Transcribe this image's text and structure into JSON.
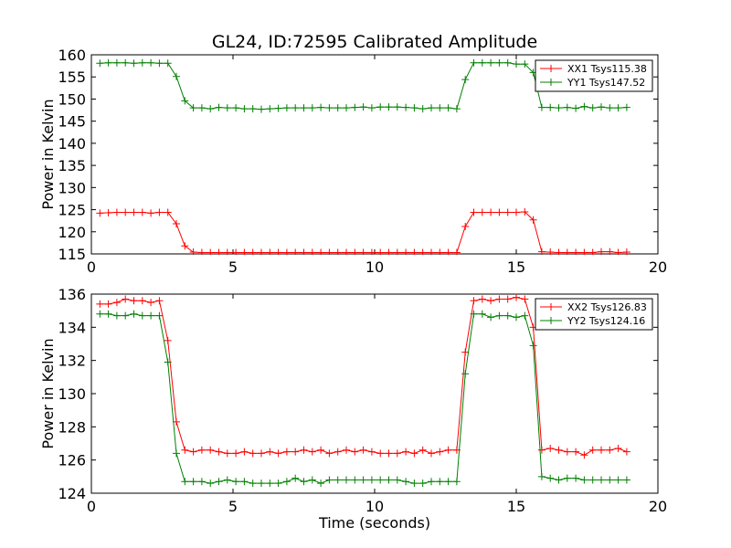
{
  "title": "GL24, ID:72595 Calibrated Amplitude",
  "colors": {
    "red": "#ff0000",
    "green": "#008000",
    "axis": "#000000"
  },
  "chart_data": [
    {
      "type": "line",
      "title": "GL24, ID:72595 Calibrated Amplitude",
      "xlabel": "",
      "ylabel": "Power in Kelvin",
      "xlim": [
        0,
        20
      ],
      "ylim": [
        115,
        160
      ],
      "xticks": [
        0,
        5,
        10,
        15,
        20
      ],
      "yticks": [
        115,
        120,
        125,
        130,
        135,
        140,
        145,
        150,
        155,
        160
      ],
      "grid": false,
      "legend": "top-right",
      "x": [
        0.3,
        0.6,
        0.9,
        1.2,
        1.5,
        1.8,
        2.1,
        2.4,
        2.7,
        3.0,
        3.3,
        3.6,
        3.9,
        4.2,
        4.5,
        4.8,
        5.1,
        5.4,
        5.7,
        6.0,
        6.3,
        6.6,
        6.9,
        7.2,
        7.5,
        7.8,
        8.1,
        8.4,
        8.7,
        9.0,
        9.3,
        9.6,
        9.9,
        10.2,
        10.5,
        10.8,
        11.1,
        11.4,
        11.7,
        12.0,
        12.3,
        12.6,
        12.9,
        13.2,
        13.5,
        13.8,
        14.1,
        14.4,
        14.7,
        15.0,
        15.3,
        15.6,
        15.9,
        16.2,
        16.5,
        16.8,
        17.1,
        17.4,
        17.7,
        18.0,
        18.3,
        18.6,
        18.9
      ],
      "series": [
        {
          "name": "XX1 Tsys115.38",
          "color": "#ff0000",
          "values": [
            124.2,
            124.3,
            124.4,
            124.4,
            124.4,
            124.4,
            124.2,
            124.4,
            124.4,
            121.8,
            116.8,
            115.4,
            115.3,
            115.3,
            115.3,
            115.3,
            115.3,
            115.3,
            115.3,
            115.3,
            115.3,
            115.3,
            115.3,
            115.3,
            115.3,
            115.3,
            115.3,
            115.3,
            115.3,
            115.3,
            115.3,
            115.3,
            115.3,
            115.3,
            115.3,
            115.3,
            115.3,
            115.3,
            115.3,
            115.3,
            115.3,
            115.3,
            115.3,
            121.2,
            124.4,
            124.4,
            124.4,
            124.4,
            124.4,
            124.4,
            124.5,
            122.7,
            115.5,
            115.4,
            115.3,
            115.3,
            115.3,
            115.3,
            115.3,
            115.5,
            115.5,
            115.3,
            115.4
          ]
        },
        {
          "name": "YY1 Tsys147.52",
          "color": "#008000",
          "values": [
            158.1,
            158.2,
            158.2,
            158.2,
            158.1,
            158.2,
            158.2,
            158.1,
            158.1,
            155.1,
            149.6,
            148.0,
            148.0,
            147.8,
            148.1,
            148.0,
            148.0,
            147.8,
            147.8,
            147.7,
            147.8,
            147.9,
            148.0,
            148.0,
            148.0,
            148.0,
            148.1,
            148.0,
            148.0,
            148.0,
            148.1,
            148.2,
            148.0,
            148.2,
            148.2,
            148.2,
            148.1,
            148.0,
            147.8,
            148.0,
            148.0,
            148.0,
            147.8,
            154.4,
            158.2,
            158.2,
            158.2,
            158.2,
            158.2,
            157.9,
            157.9,
            156.0,
            148.1,
            148.1,
            148.0,
            148.1,
            147.9,
            148.3,
            148.0,
            148.2,
            148.0,
            148.0,
            148.1
          ]
        }
      ]
    },
    {
      "type": "line",
      "title": "",
      "xlabel": "Time (seconds)",
      "ylabel": "Power in Kelvin",
      "xlim": [
        0,
        20
      ],
      "ylim": [
        124,
        136
      ],
      "xticks": [
        0,
        5,
        10,
        15,
        20
      ],
      "yticks": [
        124,
        126,
        128,
        130,
        132,
        134,
        136
      ],
      "grid": false,
      "legend": "top-right",
      "x": [
        0.3,
        0.6,
        0.9,
        1.2,
        1.5,
        1.8,
        2.1,
        2.4,
        2.7,
        3.0,
        3.3,
        3.6,
        3.9,
        4.2,
        4.5,
        4.8,
        5.1,
        5.4,
        5.7,
        6.0,
        6.3,
        6.6,
        6.9,
        7.2,
        7.5,
        7.8,
        8.1,
        8.4,
        8.7,
        9.0,
        9.3,
        9.6,
        9.9,
        10.2,
        10.5,
        10.8,
        11.1,
        11.4,
        11.7,
        12.0,
        12.3,
        12.6,
        12.9,
        13.2,
        13.5,
        13.8,
        14.1,
        14.4,
        14.7,
        15.0,
        15.3,
        15.6,
        15.9,
        16.2,
        16.5,
        16.8,
        17.1,
        17.4,
        17.7,
        18.0,
        18.3,
        18.6,
        18.9
      ],
      "series": [
        {
          "name": "XX2 Tsys126.83",
          "color": "#ff0000",
          "values": [
            135.4,
            135.4,
            135.5,
            135.7,
            135.6,
            135.6,
            135.5,
            135.6,
            133.2,
            128.3,
            126.6,
            126.5,
            126.6,
            126.6,
            126.5,
            126.4,
            126.4,
            126.5,
            126.4,
            126.4,
            126.5,
            126.4,
            126.5,
            126.5,
            126.6,
            126.5,
            126.6,
            126.4,
            126.5,
            126.6,
            126.5,
            126.6,
            126.5,
            126.4,
            126.4,
            126.4,
            126.5,
            126.4,
            126.6,
            126.4,
            126.5,
            126.6,
            126.6,
            132.5,
            135.6,
            135.7,
            135.6,
            135.7,
            135.7,
            135.8,
            135.7,
            134.0,
            126.6,
            126.7,
            126.6,
            126.5,
            126.5,
            126.3,
            126.6,
            126.6,
            126.6,
            126.7,
            126.5
          ]
        },
        {
          "name": "YY2 Tsys124.16",
          "color": "#008000",
          "values": [
            134.8,
            134.8,
            134.7,
            134.7,
            134.8,
            134.7,
            134.7,
            134.7,
            131.9,
            126.4,
            124.7,
            124.7,
            124.7,
            124.6,
            124.7,
            124.8,
            124.7,
            124.7,
            124.6,
            124.6,
            124.6,
            124.6,
            124.7,
            124.9,
            124.7,
            124.8,
            124.6,
            124.8,
            124.8,
            124.8,
            124.8,
            124.8,
            124.8,
            124.8,
            124.8,
            124.8,
            124.7,
            124.6,
            124.6,
            124.7,
            124.7,
            124.7,
            124.7,
            131.2,
            134.8,
            134.8,
            134.6,
            134.7,
            134.7,
            134.6,
            134.7,
            132.9,
            125.0,
            124.9,
            124.8,
            124.9,
            124.9,
            124.8,
            124.8,
            124.8,
            124.8,
            124.8,
            124.8
          ]
        }
      ]
    }
  ]
}
